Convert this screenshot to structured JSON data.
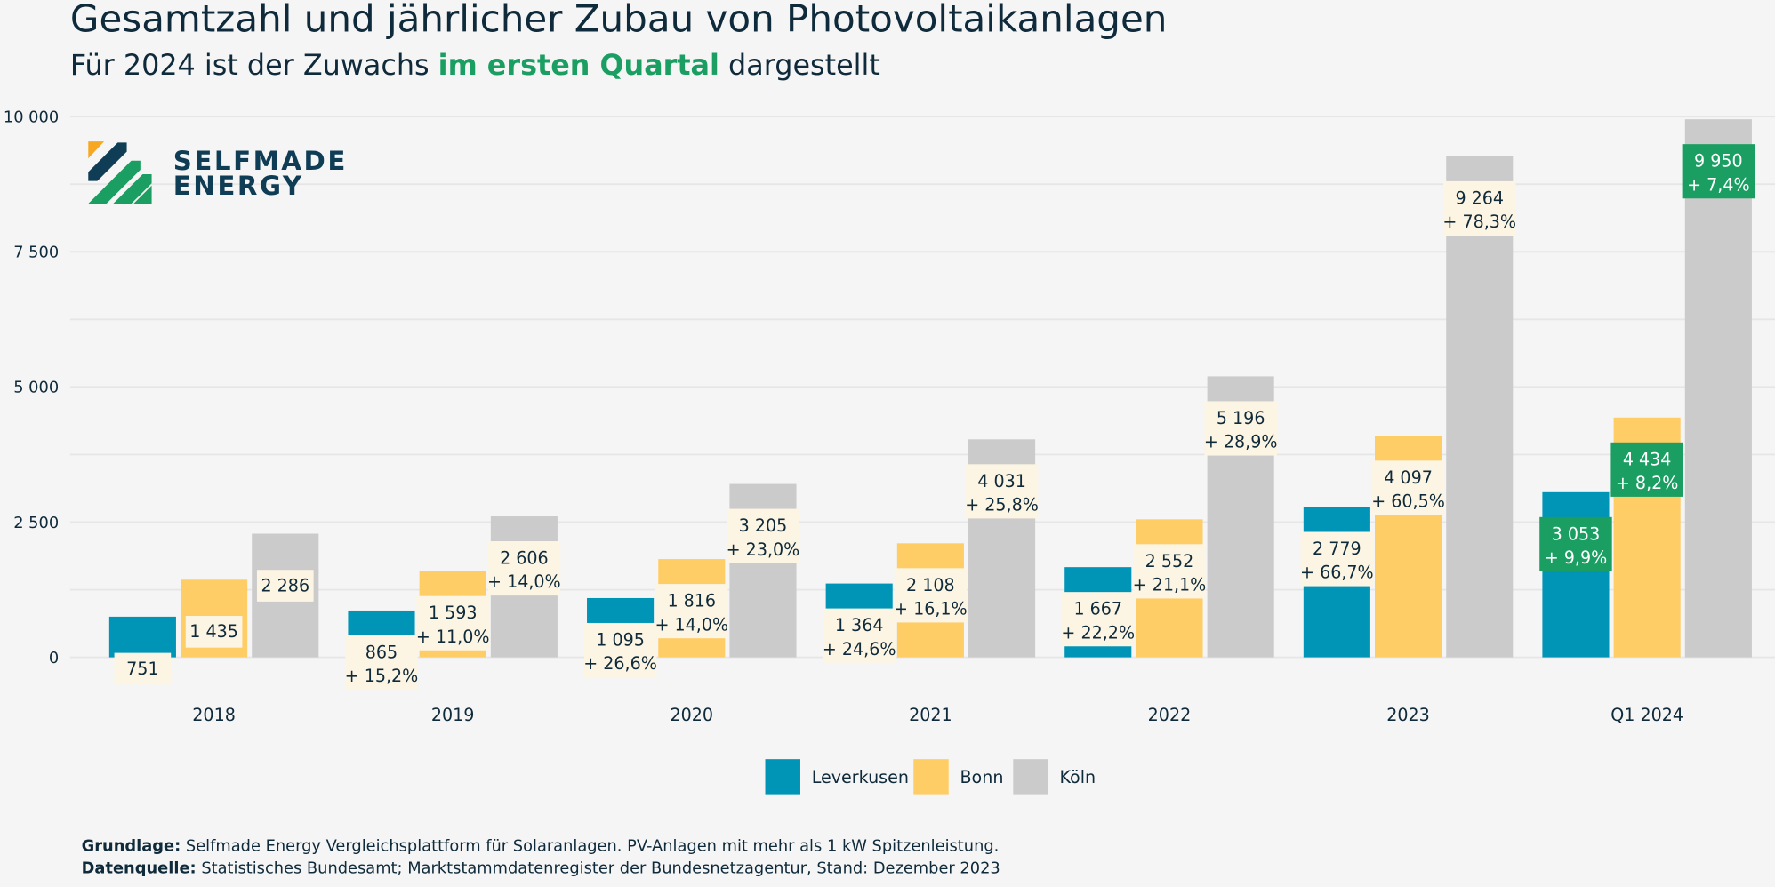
{
  "title": "Gesamtzahl und jährlicher Zubau von Photovoltaikanlagen",
  "subtitle": {
    "pre": "Für 2024 ist der Zuwachs ",
    "highlight": "im ersten Quartal",
    "post": " dargestellt"
  },
  "logo": {
    "line1": "SELFMADE",
    "line2": "ENERGY"
  },
  "footer": {
    "l1_bold": "Grundlage:",
    "l1": " Selfmade Energy Vergleichsplattform für Solaranlagen. PV-Anlagen mit mehr als 1 kW Spitzenleistung.",
    "l2_bold": "Datenquelle:",
    "l2": " Statistisches Bundesamt; Marktstammdatenregister der Bundesnetzagentur, Stand: Dezember 2023"
  },
  "colors": {
    "Leverkusen": "#0095b7",
    "Bonn": "#ffcd66",
    "Köln": "#cbcbcb",
    "highlight": "#1a9e62",
    "label_bg": "#fdf5e3"
  },
  "chart_data": {
    "type": "bar",
    "categories": [
      "2018",
      "2019",
      "2020",
      "2021",
      "2022",
      "2023",
      "Q1 2024"
    ],
    "ylim": [
      0,
      10000
    ],
    "yticks": [
      "0",
      "2 500",
      "5 000",
      "7 500",
      "10 000"
    ],
    "ytick_values": [
      0,
      2500,
      5000,
      7500,
      10000
    ],
    "grid": true,
    "legend_position": "bottom",
    "series": [
      {
        "name": "Leverkusen",
        "values": [
          751,
          865,
          1095,
          1364,
          1667,
          2779,
          3053
        ],
        "labels": [
          "751",
          "865",
          "1 095",
          "1 364",
          "1 667",
          "2 779",
          "3 053"
        ],
        "growth": [
          "",
          "+ 15,2%",
          "+ 26,6%",
          "+ 24,6%",
          "+ 22,2%",
          "+ 66,7%",
          "+ 9,9%"
        ]
      },
      {
        "name": "Bonn",
        "values": [
          1435,
          1593,
          1816,
          2108,
          2552,
          4097,
          4434
        ],
        "labels": [
          "1 435",
          "1 593",
          "1 816",
          "2 108",
          "2 552",
          "4 097",
          "4 434"
        ],
        "growth": [
          "",
          "+ 11,0%",
          "+ 14,0%",
          "+ 16,1%",
          "+ 21,1%",
          "+ 60,5%",
          "+ 8,2%"
        ]
      },
      {
        "name": "Köln",
        "values": [
          2286,
          2606,
          3205,
          4031,
          5196,
          9264,
          9950
        ],
        "labels": [
          "2 286",
          "2 606",
          "3 205",
          "4 031",
          "5 196",
          "9 264",
          "9 950"
        ],
        "growth": [
          "",
          "+ 14,0%",
          "+ 23,0%",
          "+ 25,8%",
          "+ 28,9%",
          "+ 78,3%",
          "+ 7,4%"
        ]
      }
    ]
  }
}
